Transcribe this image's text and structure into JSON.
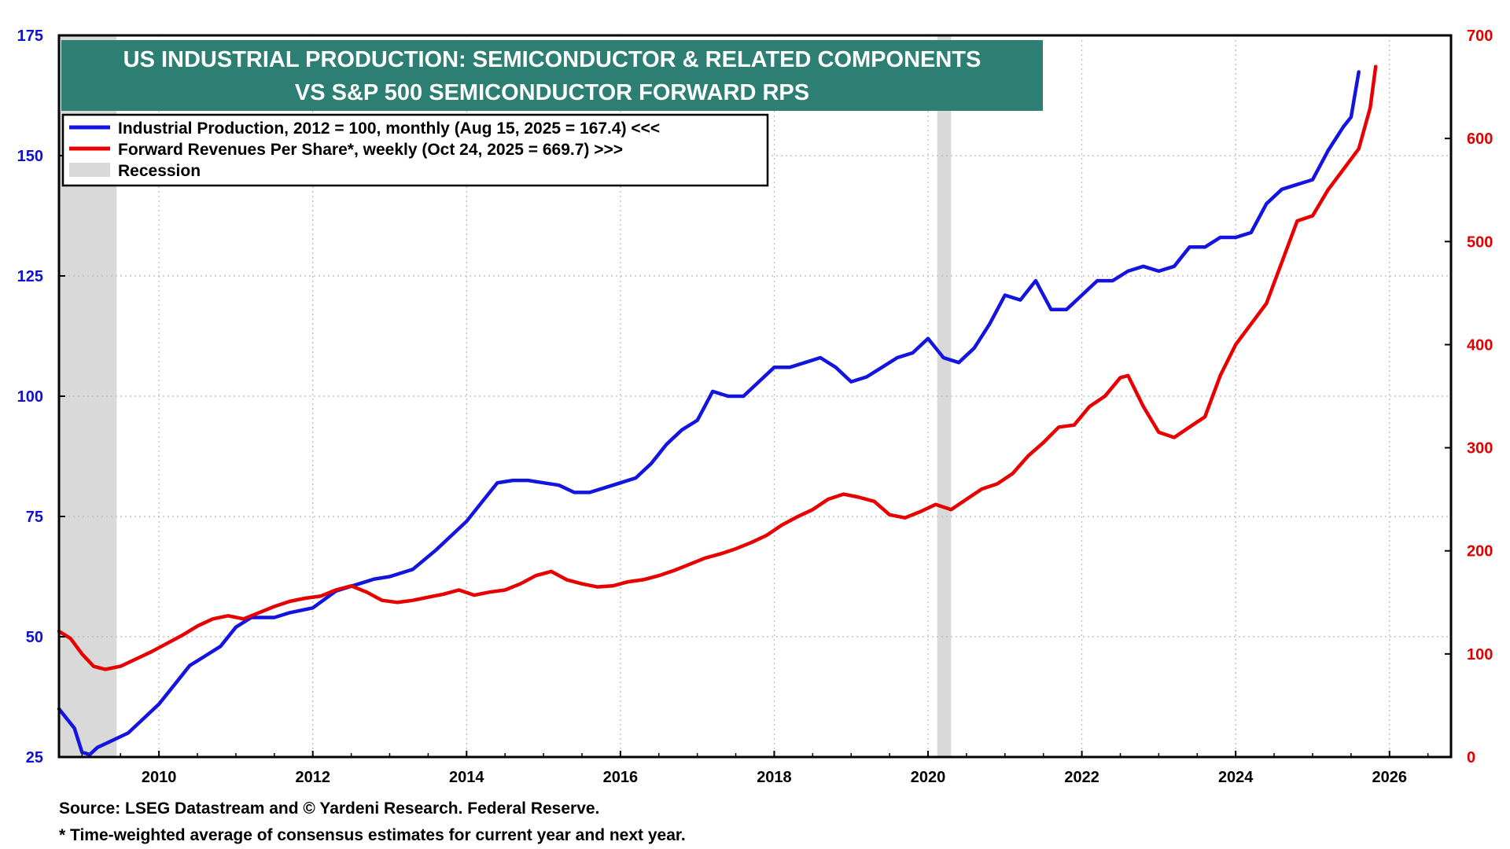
{
  "chart_data": {
    "type": "line",
    "title_lines": [
      "US INDUSTRIAL PRODUCTION: SEMICONDUCTOR & RELATED COMPONENTS",
      "VS S&P 500 SEMICONDUCTOR FORWARD RPS"
    ],
    "legend": [
      {
        "label": "Industrial Production, 2012 = 100, monthly (Aug 15, 2025 = 167.4) <<<",
        "color": "#1414e0",
        "kind": "line"
      },
      {
        "label": "Forward Revenues Per Share*, weekly (Oct 24, 2025 = 669.7) >>>",
        "color": "#e80000",
        "kind": "line"
      },
      {
        "label": "Recession",
        "color": "#d9d9d9",
        "kind": "box"
      }
    ],
    "xlim": [
      2008.7,
      2026.8
    ],
    "x_ticks": [
      2010,
      2012,
      2014,
      2016,
      2018,
      2020,
      2022,
      2024,
      2026
    ],
    "y_left": {
      "min": 25,
      "max": 175,
      "ticks": [
        25,
        50,
        75,
        100,
        125,
        150,
        175
      ],
      "color": "#1010d0"
    },
    "y_right": {
      "min": 0,
      "max": 700,
      "ticks": [
        0,
        100,
        200,
        300,
        400,
        500,
        600,
        700
      ],
      "color": "#e00000"
    },
    "grid": true,
    "legend_position": "top-left",
    "recessions": [
      [
        2008.7,
        2009.45
      ],
      [
        2020.12,
        2020.3
      ]
    ],
    "series": [
      {
        "name": "Industrial Production, 2012 = 100, monthly (Aug 15, 2025 = 167.4) <<<",
        "axis": "left",
        "color": "#1414e0",
        "x": [
          2008.7,
          2008.9,
          2009.0,
          2009.1,
          2009.2,
          2009.4,
          2009.6,
          2009.8,
          2010.0,
          2010.2,
          2010.4,
          2010.6,
          2010.8,
          2011.0,
          2011.2,
          2011.5,
          2011.7,
          2012.0,
          2012.3,
          2012.6,
          2012.8,
          2013.0,
          2013.3,
          2013.6,
          2013.8,
          2014.0,
          2014.2,
          2014.4,
          2014.6,
          2014.8,
          2015.0,
          2015.2,
          2015.4,
          2015.6,
          2015.8,
          2016.0,
          2016.2,
          2016.4,
          2016.6,
          2016.8,
          2017.0,
          2017.2,
          2017.4,
          2017.6,
          2017.8,
          2018.0,
          2018.2,
          2018.4,
          2018.6,
          2018.8,
          2019.0,
          2019.2,
          2019.4,
          2019.6,
          2019.8,
          2020.0,
          2020.2,
          2020.4,
          2020.6,
          2020.8,
          2021.0,
          2021.2,
          2021.4,
          2021.6,
          2021.8,
          2022.0,
          2022.2,
          2022.4,
          2022.6,
          2022.8,
          2023.0,
          2023.2,
          2023.4,
          2023.6,
          2023.8,
          2024.0,
          2024.2,
          2024.4,
          2024.6,
          2024.8,
          2025.0,
          2025.2,
          2025.4,
          2025.5,
          2025.6
        ],
        "y": [
          35,
          31,
          26,
          25.5,
          27,
          28.5,
          30,
          33,
          36,
          40,
          44,
          46,
          48,
          52,
          54,
          54,
          55,
          56,
          59.5,
          61,
          62,
          62.5,
          64,
          68,
          71,
          74,
          78,
          82,
          82.5,
          82.5,
          82,
          81.5,
          80,
          80,
          81,
          82,
          83,
          86,
          90,
          93,
          95,
          101,
          100,
          100,
          103,
          106,
          106,
          107,
          108,
          106,
          103,
          104,
          106,
          108,
          109,
          112,
          108,
          107,
          110,
          115,
          121,
          120,
          124,
          118,
          118,
          121,
          124,
          124,
          126,
          127,
          126,
          127,
          131,
          131,
          133,
          133,
          134,
          140,
          143,
          144,
          145,
          151,
          156,
          158,
          167.4
        ]
      },
      {
        "name": "Forward Revenues Per Share*, weekly (Oct 24, 2025 = 669.7) >>>",
        "axis": "right",
        "color": "#e80000",
        "x": [
          2008.7,
          2008.85,
          2009.0,
          2009.15,
          2009.3,
          2009.5,
          2009.7,
          2009.9,
          2010.1,
          2010.3,
          2010.5,
          2010.7,
          2010.9,
          2011.1,
          2011.3,
          2011.5,
          2011.7,
          2011.9,
          2012.1,
          2012.3,
          2012.5,
          2012.7,
          2012.9,
          2013.1,
          2013.3,
          2013.5,
          2013.7,
          2013.9,
          2014.1,
          2014.3,
          2014.5,
          2014.7,
          2014.9,
          2015.1,
          2015.3,
          2015.5,
          2015.7,
          2015.9,
          2016.1,
          2016.3,
          2016.5,
          2016.7,
          2016.9,
          2017.1,
          2017.3,
          2017.5,
          2017.7,
          2017.9,
          2018.1,
          2018.3,
          2018.5,
          2018.7,
          2018.9,
          2019.1,
          2019.3,
          2019.5,
          2019.7,
          2019.9,
          2020.1,
          2020.3,
          2020.5,
          2020.7,
          2020.9,
          2021.1,
          2021.3,
          2021.5,
          2021.7,
          2021.9,
          2022.1,
          2022.3,
          2022.5,
          2022.6,
          2022.8,
          2023.0,
          2023.2,
          2023.4,
          2023.6,
          2023.8,
          2024.0,
          2024.2,
          2024.4,
          2024.6,
          2024.8,
          2025.0,
          2025.2,
          2025.4,
          2025.6,
          2025.75,
          2025.82
        ],
        "y": [
          122,
          115,
          100,
          88,
          85,
          88,
          95,
          102,
          110,
          118,
          127,
          134,
          137,
          134,
          140,
          146,
          151,
          154,
          156,
          162,
          166,
          160,
          152,
          150,
          152,
          155,
          158,
          162,
          157,
          160,
          162,
          168,
          176,
          180,
          172,
          168,
          165,
          166,
          170,
          172,
          176,
          181,
          187,
          193,
          197,
          202,
          208,
          215,
          225,
          233,
          240,
          250,
          255,
          252,
          248,
          235,
          232,
          238,
          245,
          240,
          250,
          260,
          265,
          275,
          292,
          305,
          320,
          322,
          340,
          350,
          368,
          370,
          340,
          315,
          310,
          320,
          330,
          370,
          400,
          420,
          440,
          480,
          520,
          525,
          550,
          570,
          590,
          630,
          669.7
        ]
      }
    ]
  },
  "footnotes": {
    "source": "Source: LSEG Datastream and © Yardeni Research. Federal Reserve.",
    "note": "* Time-weighted average of consensus estimates for current year and next year."
  }
}
